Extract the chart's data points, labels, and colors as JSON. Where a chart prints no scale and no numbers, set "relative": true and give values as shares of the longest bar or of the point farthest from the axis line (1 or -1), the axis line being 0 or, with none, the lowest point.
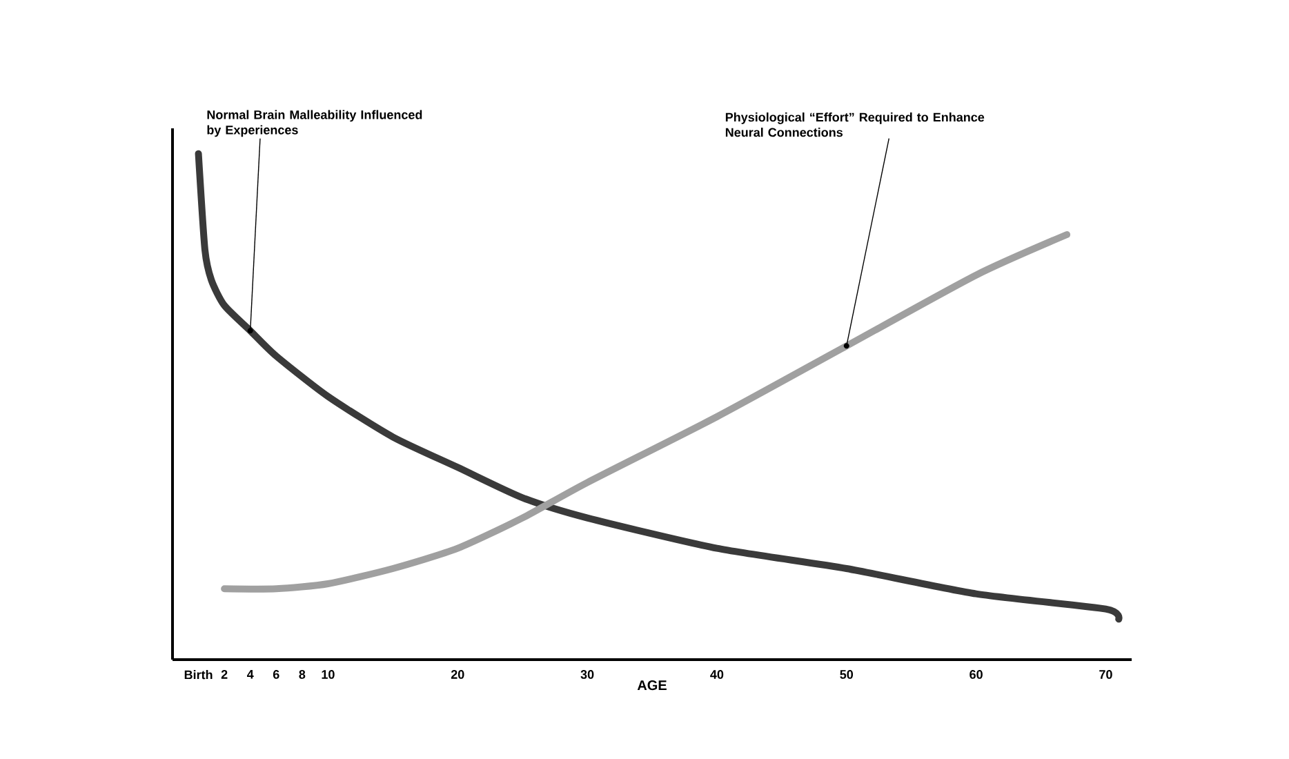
{
  "chart_data": {
    "type": "line",
    "relative": true,
    "xlabel": "AGE",
    "xlim": [
      -2,
      72
    ],
    "xticks": [
      {
        "value": 0,
        "label": "Birth"
      },
      2,
      4,
      6,
      8,
      10,
      20,
      30,
      40,
      50,
      60,
      70
    ],
    "series": [
      {
        "color": "#3a3a3a",
        "x": [
          0,
          0.5,
          1,
          2,
          4,
          6,
          10,
          15,
          20,
          25,
          30,
          40,
          50,
          60,
          70,
          71
        ],
        "values": [
          1.0,
          0.81,
          0.75,
          0.7,
          0.65,
          0.6,
          0.52,
          0.44,
          0.38,
          0.32,
          0.28,
          0.22,
          0.18,
          0.13,
          0.1,
          0.08
        ]
      },
      {
        "color": "#a0a0a0",
        "x": [
          2,
          6,
          10,
          15,
          20,
          25,
          30,
          40,
          50,
          60,
          67
        ],
        "values": [
          0.14,
          0.14,
          0.15,
          0.18,
          0.22,
          0.28,
          0.35,
          0.48,
          0.62,
          0.76,
          0.84
        ]
      }
    ],
    "annotations": [
      {
        "text": "Normal Brain Malleability Influenced by Experiences",
        "x": 4,
        "y": 0.65
      },
      {
        "text": "Physiological “Effort” Required to Enhance Neural Connections",
        "x": 50,
        "y": 0.62
      }
    ],
    "grid": false
  }
}
